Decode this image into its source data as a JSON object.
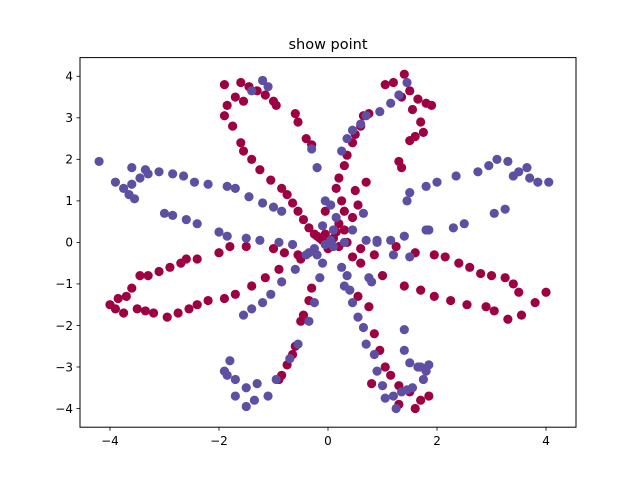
{
  "chart_data": {
    "type": "scatter",
    "title": "show point",
    "xlabel": "",
    "ylabel": "",
    "xlim": [
      -4.55,
      4.55
    ],
    "ylim": [
      -4.45,
      4.45
    ],
    "xticks": [
      -4,
      -2,
      0,
      2,
      4
    ],
    "yticks": [
      -4,
      -3,
      -2,
      -1,
      0,
      1,
      2,
      3,
      4
    ],
    "xtick_labels": [
      "−4",
      "−2",
      "0",
      "2",
      "4"
    ],
    "ytick_labels": [
      "−4",
      "−3",
      "−2",
      "−1",
      "0",
      "1",
      "2",
      "3",
      "4"
    ],
    "grid": false,
    "legend": "none",
    "colors": {
      "class_0": "#9e0142",
      "class_1": "#5e4fa2"
    },
    "series": [
      {
        "values": [
          [
            -1.9,
            3.8
          ],
          [
            -1.6,
            3.85
          ],
          [
            -1.45,
            3.75
          ],
          [
            -1.3,
            3.65
          ],
          [
            -1.15,
            3.55
          ],
          [
            -1.0,
            3.4
          ],
          [
            -0.95,
            3.3
          ],
          [
            -1.7,
            3.5
          ],
          [
            -1.55,
            3.4
          ],
          [
            -1.85,
            3.3
          ],
          [
            -1.9,
            3.05
          ],
          [
            -1.75,
            2.8
          ],
          [
            -1.6,
            2.4
          ],
          [
            -1.55,
            2.2
          ],
          [
            -1.4,
            2.0
          ],
          [
            -1.25,
            1.75
          ],
          [
            -1.05,
            1.5
          ],
          [
            -0.85,
            1.3
          ],
          [
            -0.75,
            1.15
          ],
          [
            -0.65,
            0.95
          ],
          [
            -0.55,
            0.75
          ],
          [
            -0.45,
            0.55
          ],
          [
            -0.35,
            0.35
          ],
          [
            -0.25,
            0.2
          ],
          [
            -0.15,
            0.1
          ],
          [
            -0.6,
            3.1
          ],
          [
            -0.55,
            2.9
          ],
          [
            -0.4,
            2.5
          ],
          [
            -0.3,
            2.35
          ],
          [
            1.4,
            4.05
          ],
          [
            1.2,
            3.85
          ],
          [
            1.05,
            3.8
          ],
          [
            1.5,
            3.65
          ],
          [
            1.65,
            3.45
          ],
          [
            1.8,
            3.35
          ],
          [
            1.9,
            3.3
          ],
          [
            1.35,
            3.5
          ],
          [
            1.55,
            3.2
          ],
          [
            1.7,
            2.9
          ],
          [
            1.75,
            2.65
          ],
          [
            1.6,
            2.55
          ],
          [
            1.5,
            2.45
          ],
          [
            0.75,
            3.1
          ],
          [
            0.65,
            3.05
          ],
          [
            0.6,
            2.8
          ],
          [
            0.5,
            2.6
          ],
          [
            0.45,
            2.4
          ],
          [
            0.35,
            2.1
          ],
          [
            0.3,
            1.85
          ],
          [
            0.2,
            1.55
          ],
          [
            0.15,
            1.3
          ],
          [
            0.25,
            1.0
          ],
          [
            0.3,
            0.75
          ],
          [
            0.2,
            0.45
          ],
          [
            0.15,
            0.25
          ],
          [
            1.3,
            1.95
          ],
          [
            1.35,
            1.8
          ],
          [
            -1.0,
            -0.15
          ],
          [
            -0.8,
            -0.25
          ],
          [
            -0.55,
            -0.3
          ],
          [
            -1.5,
            -0.1
          ],
          [
            -1.8,
            -0.1
          ],
          [
            -2.0,
            -0.25
          ],
          [
            -2.4,
            -0.4
          ],
          [
            -2.6,
            -0.4
          ],
          [
            -2.7,
            -0.5
          ],
          [
            -2.9,
            -0.6
          ],
          [
            -3.1,
            -0.7
          ],
          [
            -3.3,
            -0.8
          ],
          [
            -3.45,
            -0.8
          ],
          [
            -3.6,
            -1.1
          ],
          [
            -3.7,
            -1.3
          ],
          [
            -3.85,
            -1.35
          ],
          [
            -4.0,
            -1.5
          ],
          [
            -3.9,
            -1.6
          ],
          [
            -3.75,
            -1.7
          ],
          [
            -3.5,
            -1.6
          ],
          [
            -3.35,
            -1.65
          ],
          [
            -3.2,
            -1.7
          ],
          [
            -2.95,
            -1.8
          ],
          [
            -2.75,
            -1.7
          ],
          [
            -2.55,
            -1.6
          ],
          [
            -2.4,
            -1.5
          ],
          [
            -2.2,
            -1.4
          ],
          [
            -1.9,
            -1.35
          ],
          [
            -1.7,
            -1.25
          ],
          [
            -1.4,
            -1.05
          ],
          [
            -1.15,
            -0.85
          ],
          [
            -0.9,
            -0.65
          ],
          [
            -0.5,
            -0.4
          ],
          [
            0.35,
            0.0
          ],
          [
            0.6,
            -0.15
          ],
          [
            0.85,
            -0.3
          ],
          [
            0.45,
            -0.35
          ],
          [
            0.6,
            -0.5
          ],
          [
            1.0,
            -0.8
          ],
          [
            1.4,
            -1.05
          ],
          [
            1.7,
            -1.15
          ],
          [
            1.95,
            -1.3
          ],
          [
            2.25,
            -1.4
          ],
          [
            2.55,
            -1.5
          ],
          [
            2.9,
            -1.55
          ],
          [
            3.05,
            -1.65
          ],
          [
            3.3,
            -1.85
          ],
          [
            3.55,
            -1.75
          ],
          [
            3.8,
            -1.45
          ],
          [
            4.0,
            -1.2
          ],
          [
            3.5,
            -1.2
          ],
          [
            3.4,
            -1.0
          ],
          [
            3.25,
            -0.85
          ],
          [
            3.0,
            -0.8
          ],
          [
            2.8,
            -0.75
          ],
          [
            2.6,
            -0.6
          ],
          [
            2.4,
            -0.5
          ],
          [
            2.15,
            -0.35
          ],
          [
            1.95,
            -0.3
          ],
          [
            1.6,
            -0.25
          ],
          [
            1.25,
            -0.1
          ],
          [
            -0.3,
            -1.1
          ],
          [
            -0.35,
            -1.4
          ],
          [
            -0.45,
            -1.75
          ],
          [
            -0.5,
            -1.9
          ],
          [
            -0.6,
            -2.5
          ],
          [
            -0.65,
            -2.7
          ],
          [
            -0.75,
            -2.95
          ],
          [
            -0.85,
            -3.2
          ],
          [
            -0.9,
            -3.3
          ],
          [
            0.55,
            -1.3
          ],
          [
            0.75,
            -1.55
          ],
          [
            0.85,
            -2.2
          ],
          [
            0.95,
            -2.6
          ],
          [
            1.05,
            -3.0
          ],
          [
            1.15,
            -3.2
          ],
          [
            1.3,
            -3.45
          ],
          [
            1.5,
            -3.6
          ],
          [
            1.7,
            -3.8
          ],
          [
            1.6,
            -4.0
          ],
          [
            1.85,
            -3.7
          ],
          [
            0.8,
            -3.4
          ],
          [
            1.3,
            -3.9
          ],
          [
            0.05,
            -0.05
          ],
          [
            -0.1,
            0.05
          ],
          [
            0.1,
            0.1
          ],
          [
            0.0,
            -0.15
          ],
          [
            -0.05,
            0.2
          ],
          [
            0.2,
            -0.1
          ],
          [
            0.45,
            0.6
          ],
          [
            0.55,
            0.9
          ],
          [
            0.5,
            1.25
          ],
          [
            0.7,
            1.45
          ],
          [
            -0.05,
            0.75
          ],
          [
            -0.2,
            0.15
          ],
          [
            0.3,
            0.3
          ]
        ]
      },
      {
        "values": [
          [
            -4.2,
            1.95
          ],
          [
            -3.9,
            1.45
          ],
          [
            -3.75,
            1.3
          ],
          [
            -3.65,
            1.15
          ],
          [
            -3.55,
            1.05
          ],
          [
            -3.6,
            1.4
          ],
          [
            -3.45,
            1.55
          ],
          [
            -3.3,
            1.65
          ],
          [
            -3.1,
            1.7
          ],
          [
            -2.85,
            1.65
          ],
          [
            -2.65,
            1.6
          ],
          [
            -2.45,
            1.45
          ],
          [
            -2.2,
            1.4
          ],
          [
            -1.85,
            1.35
          ],
          [
            -1.7,
            1.3
          ],
          [
            -1.45,
            1.1
          ],
          [
            -1.2,
            0.95
          ],
          [
            -1.0,
            0.85
          ],
          [
            -0.85,
            0.75
          ],
          [
            -3.6,
            1.8
          ],
          [
            -3.35,
            1.75
          ],
          [
            -3.0,
            0.7
          ],
          [
            -2.85,
            0.65
          ],
          [
            -2.6,
            0.55
          ],
          [
            -2.4,
            0.45
          ],
          [
            -2.0,
            0.25
          ],
          [
            -1.85,
            0.15
          ],
          [
            -1.5,
            0.1
          ],
          [
            -1.25,
            0.05
          ],
          [
            -0.9,
            0.0
          ],
          [
            -0.65,
            -0.05
          ],
          [
            4.05,
            1.45
          ],
          [
            3.85,
            1.45
          ],
          [
            3.7,
            1.55
          ],
          [
            3.5,
            1.7
          ],
          [
            3.3,
            1.95
          ],
          [
            3.1,
            2.0
          ],
          [
            2.95,
            1.85
          ],
          [
            2.75,
            1.7
          ],
          [
            2.35,
            1.6
          ],
          [
            2.0,
            1.45
          ],
          [
            1.8,
            1.35
          ],
          [
            1.5,
            1.2
          ],
          [
            1.45,
            1.0
          ],
          [
            3.65,
            1.8
          ],
          [
            3.4,
            1.6
          ],
          [
            3.25,
            0.8
          ],
          [
            3.05,
            0.7
          ],
          [
            2.5,
            0.45
          ],
          [
            2.3,
            0.35
          ],
          [
            1.85,
            0.3
          ],
          [
            1.4,
            0.15
          ],
          [
            1.15,
            0.05
          ],
          [
            0.9,
            0.05
          ],
          [
            0.7,
            0.05
          ],
          [
            -1.4,
            3.65
          ],
          [
            -1.2,
            3.9
          ],
          [
            -1.1,
            3.75
          ],
          [
            -0.3,
            2.25
          ],
          [
            -0.2,
            1.8
          ],
          [
            -0.05,
            1.0
          ],
          [
            0.05,
            0.9
          ],
          [
            0.15,
            0.6
          ],
          [
            1.45,
            3.85
          ],
          [
            1.3,
            3.55
          ],
          [
            1.15,
            3.35
          ],
          [
            0.95,
            3.15
          ],
          [
            0.7,
            3.05
          ],
          [
            0.6,
            2.85
          ],
          [
            0.45,
            2.7
          ],
          [
            0.35,
            2.5
          ],
          [
            0.25,
            2.2
          ],
          [
            0.65,
            0.7
          ],
          [
            0.45,
            0.3
          ],
          [
            -1.8,
            -2.85
          ],
          [
            -1.85,
            -3.2
          ],
          [
            -1.7,
            -3.3
          ],
          [
            -1.5,
            -3.5
          ],
          [
            -1.5,
            -3.95
          ],
          [
            -1.35,
            -3.8
          ],
          [
            -1.1,
            -3.7
          ],
          [
            -0.95,
            -3.3
          ],
          [
            -0.7,
            -2.8
          ],
          [
            -0.55,
            -2.45
          ],
          [
            -0.35,
            -1.9
          ],
          [
            -0.25,
            -1.45
          ],
          [
            -0.15,
            -0.85
          ],
          [
            -0.1,
            -0.5
          ],
          [
            -0.2,
            -0.3
          ],
          [
            -0.4,
            -0.3
          ],
          [
            -1.55,
            -1.75
          ],
          [
            -1.4,
            -1.6
          ],
          [
            -1.2,
            -1.45
          ],
          [
            -1.05,
            -1.25
          ],
          [
            -0.85,
            -0.95
          ],
          [
            -0.6,
            -0.65
          ],
          [
            -1.7,
            -3.7
          ],
          [
            -1.3,
            -3.4
          ],
          [
            -1.9,
            -3.1
          ],
          [
            0.1,
            -0.1
          ],
          [
            0.25,
            -0.6
          ],
          [
            0.35,
            -0.8
          ],
          [
            0.4,
            -1.15
          ],
          [
            0.45,
            -1.45
          ],
          [
            0.55,
            -1.8
          ],
          [
            0.65,
            -2.05
          ],
          [
            0.7,
            -2.45
          ],
          [
            0.85,
            -2.7
          ],
          [
            1.0,
            -3.45
          ],
          [
            1.05,
            -3.75
          ],
          [
            1.2,
            -3.7
          ],
          [
            1.35,
            -3.6
          ],
          [
            1.55,
            -3.5
          ],
          [
            1.75,
            -3.3
          ],
          [
            1.8,
            -3.1
          ],
          [
            1.65,
            -3.0
          ],
          [
            1.5,
            -2.9
          ],
          [
            1.4,
            -2.6
          ],
          [
            1.4,
            -2.1
          ],
          [
            0.3,
            -1.05
          ],
          [
            1.25,
            -4.0
          ],
          [
            1.45,
            -3.55
          ],
          [
            1.7,
            -3.0
          ],
          [
            0.9,
            -3.1
          ],
          [
            1.85,
            -2.95
          ],
          [
            0.9,
            0.0
          ],
          [
            0.3,
            0.0
          ],
          [
            0.05,
            0.05
          ],
          [
            -0.05,
            -0.05
          ],
          [
            -0.25,
            -0.15
          ],
          [
            -0.35,
            -0.25
          ],
          [
            0.1,
            0.3
          ],
          [
            -0.1,
            0.4
          ],
          [
            0.75,
            -0.85
          ],
          [
            0.8,
            -0.95
          ],
          [
            1.2,
            -0.3
          ],
          [
            1.5,
            -0.35
          ],
          [
            1.8,
            0.3
          ]
        ]
      }
    ]
  }
}
